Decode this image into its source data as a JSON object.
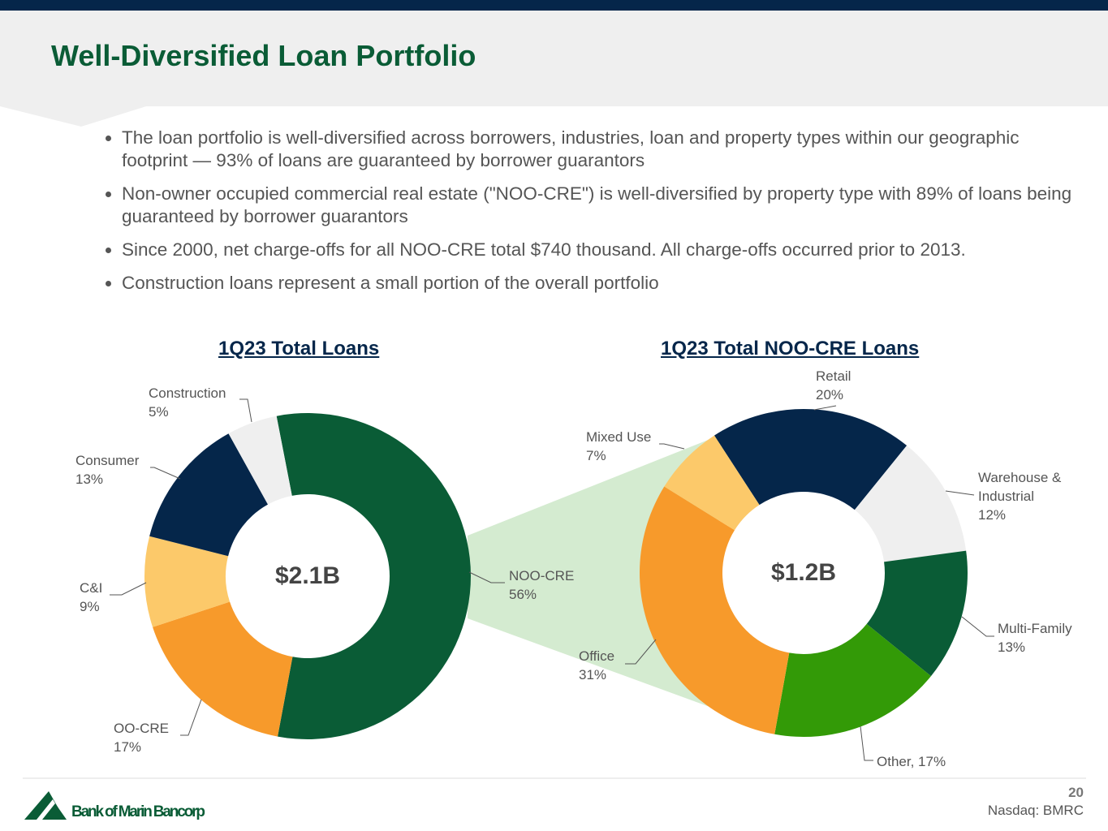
{
  "header": {
    "title": "Well-Diversified Loan Portfolio"
  },
  "bullets": [
    "The loan portfolio is well-diversified across borrowers, industries, loan and property types within our geographic footprint — 93% of loans are guaranteed by borrower guarantors",
    "Non-owner occupied commercial real estate (\"NOO-CRE\") is well-diversified by property type with 89% of loans being guaranteed by borrower guarantors",
    "Since 2000, net charge-offs for all NOO-CRE total $740 thousand. All charge-offs occurred prior to 2013.",
    "Construction loans represent a small portion of the overall portfolio"
  ],
  "chart_data": [
    {
      "type": "donut",
      "title": "1Q23 Total Loans",
      "center_label": "$2.1B",
      "categories": [
        "NOO-CRE",
        "OO-CRE",
        "C&I",
        "Consumer",
        "Construction"
      ],
      "values": [
        56,
        17,
        9,
        13,
        5
      ],
      "value_labels": [
        "56%",
        "17%",
        "9%",
        "13%",
        "5%"
      ],
      "colors": [
        "#0a5c36",
        "#f79a2b",
        "#fcc96a",
        "#05264a",
        "#efefef"
      ]
    },
    {
      "type": "donut",
      "title": "1Q23 Total NOO-CRE Loans",
      "center_label": "$1.2B",
      "categories": [
        "Retail",
        "Warehouse & Industrial",
        "Multi-Family",
        "Other,",
        "Office",
        "Mixed Use"
      ],
      "values": [
        20,
        12,
        13,
        17,
        31,
        7
      ],
      "value_labels": [
        "20%",
        "12%",
        "13%",
        "17%",
        "31%",
        "7%"
      ],
      "colors": [
        "#05264a",
        "#efefef",
        "#0a5c36",
        "#339a07",
        "#f79a2b",
        "#fcc96a"
      ]
    }
  ],
  "footer": {
    "page": "20",
    "ticker": "Nasdaq: BMRC",
    "company": "Bank of Marin Bancorp"
  }
}
